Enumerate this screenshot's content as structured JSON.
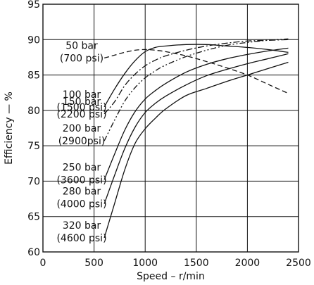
{
  "chart_data": {
    "type": "line",
    "title": "",
    "xlabel": "Speed – r/min",
    "ylabel": "Efficiency — %",
    "xlim": [
      0,
      2500
    ],
    "ylim": [
      60,
      95
    ],
    "x_ticks": [
      "0",
      "500",
      "1000",
      "1500",
      "2000",
      "2500"
    ],
    "y_ticks": [
      "60",
      "65",
      "70",
      "75",
      "80",
      "85",
      "90",
      "95"
    ],
    "grid": true,
    "legend": "inline labels",
    "series": [
      {
        "name": "50 bar (700 psi)",
        "label_lines": [
          "50 bar",
          "(700 psi)"
        ],
        "line_style": "dashed",
        "x": [
          600,
          700,
          800,
          900,
          1000,
          1100,
          1200,
          1400,
          1600,
          1800,
          2000,
          2200,
          2400
        ],
        "y": [
          87.4,
          87.8,
          88.2,
          88.5,
          88.6,
          88.5,
          88.3,
          87.7,
          86.9,
          86.0,
          85.0,
          83.7,
          82.4
        ]
      },
      {
        "name": "100 bar (1500 psi)",
        "label_lines": [
          "100 bar",
          "(1500 psi)"
        ],
        "line_style": "solid",
        "x": [
          600,
          700,
          800,
          900,
          1000,
          1100,
          1200,
          1400,
          1600,
          1800,
          2000,
          2200,
          2400
        ],
        "y": [
          80.5,
          83.0,
          85.2,
          87.0,
          88.3,
          88.9,
          89.1,
          89.3,
          89.3,
          89.1,
          88.9,
          88.6,
          88.2
        ]
      },
      {
        "name": "150 bar (2200 psi)",
        "label_lines": [
          "150 bar",
          "(2200 psi)"
        ],
        "line_style": "dash-dot",
        "x": [
          600,
          700,
          800,
          900,
          1000,
          1100,
          1200,
          1400,
          1600,
          1800,
          2000,
          2200,
          2400
        ],
        "y": [
          79.5,
          81.2,
          83.5,
          85.1,
          86.3,
          87.1,
          87.7,
          88.5,
          89.1,
          89.5,
          89.8,
          89.9,
          90.0
        ]
      },
      {
        "name": "200 bar (2900psi)",
        "label_lines": [
          "200 bar",
          "(2900psi)"
        ],
        "line_style": "dash-dot-dot",
        "x": [
          600,
          700,
          800,
          900,
          1000,
          1100,
          1200,
          1400,
          1600,
          1800,
          2000,
          2200,
          2400
        ],
        "y": [
          75.7,
          78.6,
          81.3,
          83.2,
          84.6,
          85.6,
          86.4,
          87.6,
          88.5,
          89.2,
          89.6,
          89.9,
          90.1
        ]
      },
      {
        "name": "250 bar (3600 psi)",
        "label_lines": [
          "250 bar",
          "(3600 psi)"
        ],
        "line_style": "solid",
        "x": [
          600,
          700,
          800,
          900,
          1000,
          1100,
          1200,
          1400,
          1600,
          1800,
          2000,
          2200,
          2400
        ],
        "y": [
          70.2,
          73.8,
          77.2,
          79.8,
          81.6,
          82.8,
          83.8,
          85.4,
          86.5,
          87.3,
          87.9,
          88.4,
          88.8
        ]
      },
      {
        "name": "280 bar (4000 psi)",
        "label_lines": [
          "280 bar",
          "(4000 psi)"
        ],
        "line_style": "solid",
        "x": [
          600,
          700,
          800,
          900,
          1000,
          1100,
          1200,
          1400,
          1600,
          1800,
          2000,
          2200,
          2400
        ],
        "y": [
          66.8,
          70.8,
          74.6,
          77.6,
          79.7,
          81.0,
          82.0,
          83.6,
          84.9,
          85.8,
          86.6,
          87.3,
          88.0
        ]
      },
      {
        "name": "320 bar (4600 psi)",
        "label_lines": [
          "320 bar",
          "(4600 psi)"
        ],
        "line_style": "solid",
        "x": [
          600,
          700,
          800,
          900,
          1000,
          1100,
          1200,
          1400,
          1600,
          1800,
          2000,
          2200,
          2400
        ],
        "y": [
          62.0,
          66.8,
          71.6,
          75.3,
          77.4,
          78.9,
          80.2,
          82.1,
          83.1,
          84.1,
          85.0,
          85.9,
          86.8
        ]
      }
    ]
  }
}
